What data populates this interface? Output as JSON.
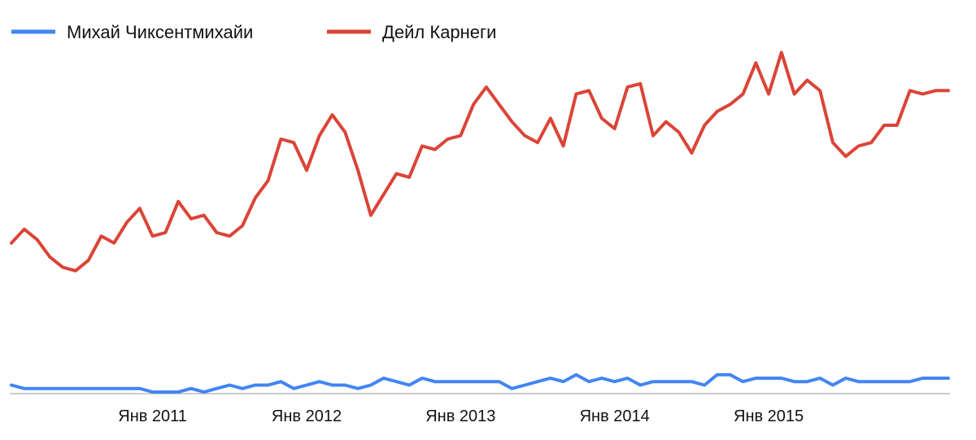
{
  "chart_data": {
    "type": "line",
    "title": "",
    "xlabel": "",
    "ylabel": "",
    "x_range": [
      "2010-02",
      "2016-04"
    ],
    "ylim": [
      0,
      100
    ],
    "grid": false,
    "legend_position": "top-left",
    "x_tick_labels": [
      {
        "label": "Янв 2011",
        "date": "2011-01"
      },
      {
        "label": "Янв 2012",
        "date": "2012-01"
      },
      {
        "label": "Янв 2013",
        "date": "2013-01"
      },
      {
        "label": "Янв 2014",
        "date": "2014-01"
      },
      {
        "label": "Янв 2015",
        "date": "2015-01"
      }
    ],
    "x": [
      "2010-02",
      "2010-03",
      "2010-04",
      "2010-05",
      "2010-06",
      "2010-07",
      "2010-08",
      "2010-09",
      "2010-10",
      "2010-11",
      "2010-12",
      "2011-01",
      "2011-02",
      "2011-03",
      "2011-04",
      "2011-05",
      "2011-06",
      "2011-07",
      "2011-08",
      "2011-09",
      "2011-10",
      "2011-11",
      "2011-12",
      "2012-01",
      "2012-02",
      "2012-03",
      "2012-04",
      "2012-05",
      "2012-06",
      "2012-07",
      "2012-08",
      "2012-09",
      "2012-10",
      "2012-11",
      "2012-12",
      "2013-01",
      "2013-02",
      "2013-03",
      "2013-04",
      "2013-05",
      "2013-06",
      "2013-07",
      "2013-08",
      "2013-09",
      "2013-10",
      "2013-11",
      "2013-12",
      "2014-01",
      "2014-02",
      "2014-03",
      "2014-04",
      "2014-05",
      "2014-06",
      "2014-07",
      "2014-08",
      "2014-09",
      "2014-10",
      "2014-11",
      "2014-12",
      "2015-01",
      "2015-02",
      "2015-03",
      "2015-04",
      "2015-05",
      "2015-06",
      "2015-07",
      "2015-08",
      "2015-09",
      "2015-10",
      "2015-11",
      "2015-12",
      "2016-01",
      "2016-02",
      "2016-03"
    ],
    "series": [
      {
        "name": "Михай Чиксентмихайи",
        "color": "#4285f4",
        "values": [
          2,
          1,
          1,
          1,
          1,
          1,
          1,
          1,
          1,
          1,
          1,
          0,
          0,
          0,
          1,
          0,
          1,
          2,
          1,
          2,
          2,
          3,
          1,
          2,
          3,
          2,
          2,
          1,
          2,
          4,
          3,
          2,
          4,
          3,
          3,
          3,
          3,
          3,
          3,
          1,
          2,
          3,
          4,
          3,
          5,
          3,
          4,
          3,
          4,
          2,
          3,
          3,
          3,
          3,
          2,
          5,
          5,
          3,
          4,
          4,
          4,
          3,
          3,
          4,
          2,
          4,
          3,
          3,
          3,
          3,
          3,
          4,
          4,
          4
        ]
      },
      {
        "name": "Дейл Карнеги",
        "color": "#db4437",
        "values": [
          43,
          47,
          44,
          39,
          36,
          35,
          38,
          45,
          43,
          49,
          53,
          45,
          46,
          55,
          50,
          51,
          46,
          45,
          48,
          56,
          61,
          73,
          72,
          64,
          74,
          80,
          75,
          64,
          51,
          57,
          63,
          62,
          71,
          70,
          73,
          74,
          83,
          88,
          83,
          78,
          74,
          72,
          79,
          71,
          86,
          87,
          79,
          76,
          88,
          89,
          74,
          78,
          75,
          69,
          77,
          81,
          83,
          86,
          95,
          86,
          98,
          86,
          90,
          87,
          72,
          68,
          71,
          72,
          77,
          77,
          87,
          86,
          87,
          87
        ]
      }
    ]
  }
}
